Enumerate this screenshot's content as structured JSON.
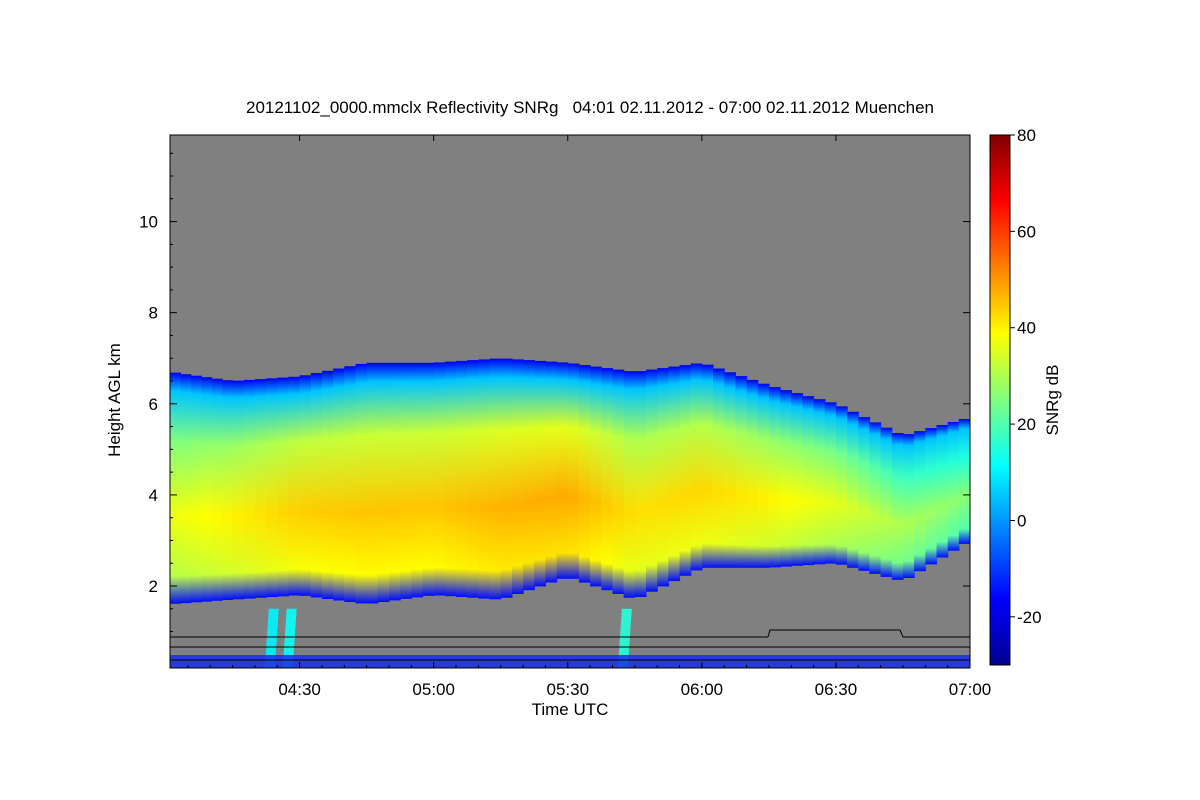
{
  "chart_data": {
    "type": "heatmap",
    "title": "20121102_0000.mmclx Reflectivity SNRg   04:01 02.11.2012 - 07:00 02.11.2012 Muenchen",
    "xlabel": "Time UTC",
    "ylabel": "Height AGL km",
    "colorbar_label": "SNRg dB",
    "x_range": [
      "04:01",
      "07:00"
    ],
    "x_ticks": [
      "04:30",
      "05:00",
      "05:30",
      "06:00",
      "06:30",
      "07:00"
    ],
    "y_range_km": [
      0.2,
      11.9
    ],
    "y_ticks": [
      2,
      4,
      6,
      8,
      10
    ],
    "colorbar_range_db": [
      -30,
      80
    ],
    "colorbar_ticks": [
      -20,
      0,
      20,
      40,
      60,
      80
    ],
    "colormap": "jet",
    "background_color": "#808080",
    "cloud_layer": {
      "time": [
        "04:01",
        "04:15",
        "04:30",
        "04:45",
        "05:00",
        "05:15",
        "05:30",
        "05:45",
        "06:00",
        "06:15",
        "06:30",
        "06:45",
        "07:00"
      ],
      "top_km": [
        6.7,
        6.5,
        6.6,
        6.9,
        6.9,
        7.0,
        6.9,
        6.7,
        6.9,
        6.4,
        6.0,
        5.3,
        5.7
      ],
      "base_km": [
        1.6,
        1.7,
        1.8,
        1.6,
        1.8,
        1.7,
        2.2,
        1.7,
        2.4,
        2.4,
        2.5,
        2.1,
        3.0
      ],
      "peak_snr_db": [
        37,
        40,
        44,
        45,
        45,
        47,
        48,
        42,
        43,
        40,
        36,
        30,
        26
      ]
    },
    "precipitation_streaks": [
      {
        "time": "04:24",
        "snr_db": 10
      },
      {
        "time": "04:28",
        "snr_db": 12
      },
      {
        "time": "05:43",
        "snr_db": 15
      }
    ]
  }
}
